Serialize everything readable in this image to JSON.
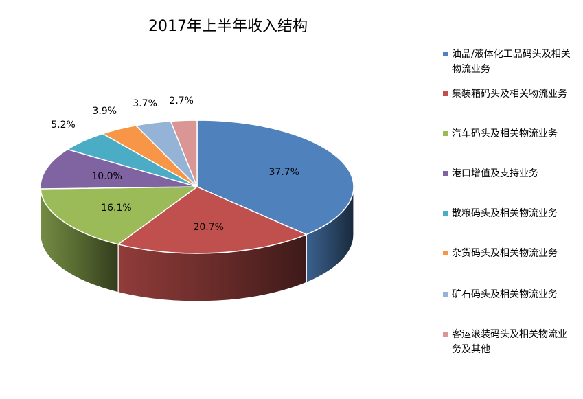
{
  "chart_data": {
    "type": "pie",
    "title": "2017年上半年收入结构",
    "categories": [
      "油品/液体化工品码头及相关物流业务",
      "集装箱码头及相关物流业务",
      "汽车码头及相关物流业务",
      "港口增值及支持业务",
      "散粮码头及相关物流业务",
      "杂货码头及相关物流业务",
      "矿石码头及相关物流业务",
      "客运滚装码头及相关物流业务及其他"
    ],
    "values": [
      37.7,
      20.7,
      16.1,
      10.0,
      5.2,
      3.9,
      3.7,
      2.7
    ],
    "labels": [
      "37.7%",
      "20.7%",
      "16.1%",
      "10.0%",
      "5.2%",
      "3.9%",
      "3.7%",
      "2.7%"
    ],
    "colors": [
      "#4F81BD",
      "#C0504D",
      "#9BBB59",
      "#8064A2",
      "#4BACC6",
      "#F79646",
      "#95B3D7",
      "#D99694"
    ],
    "legend_position": "right"
  }
}
